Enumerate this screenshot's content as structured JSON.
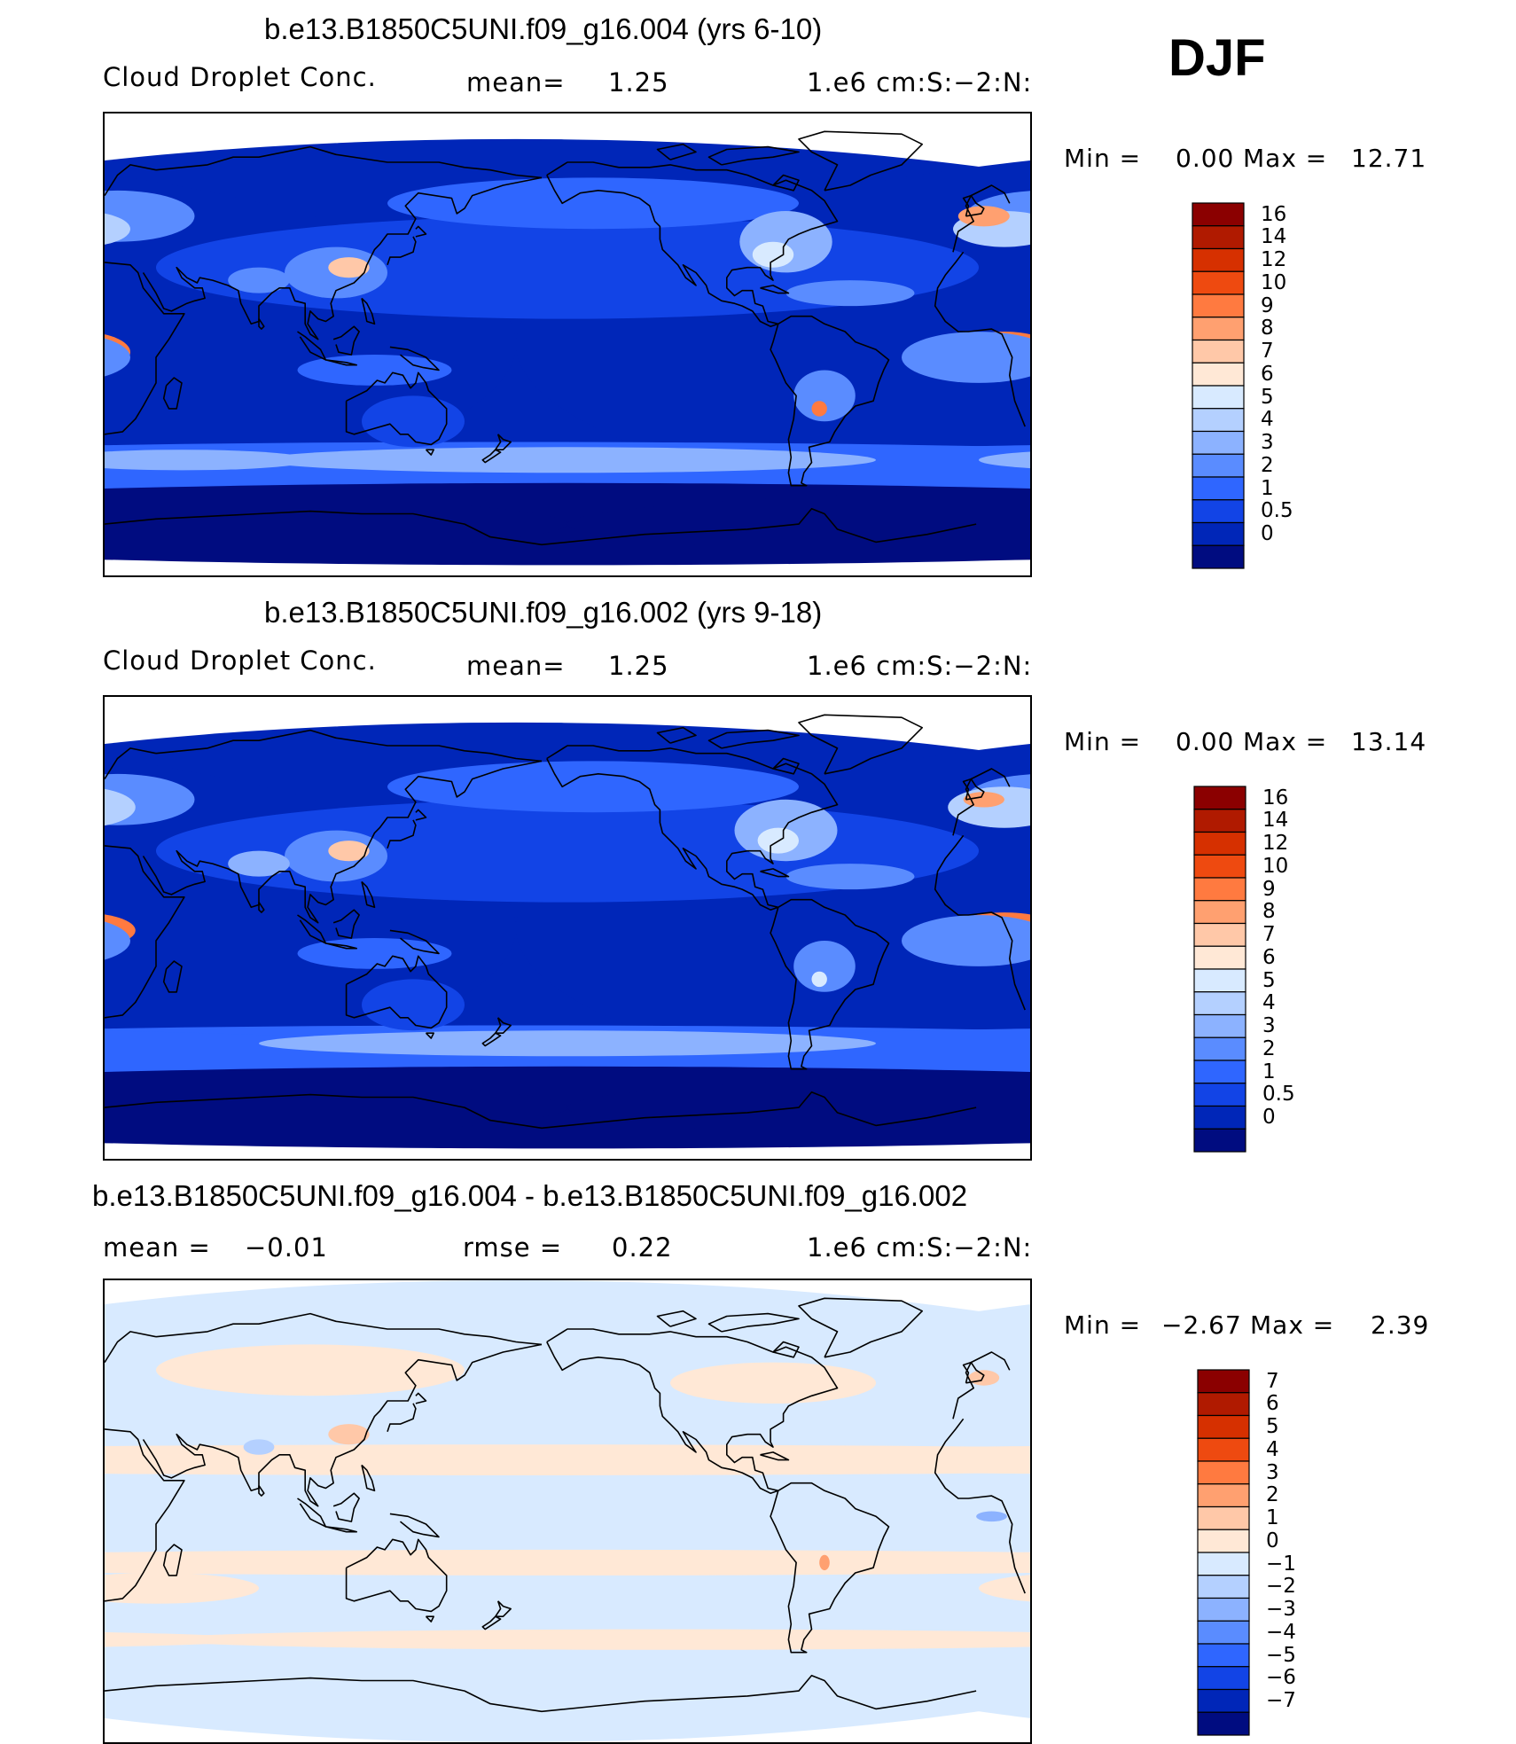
{
  "season": "DJF",
  "panels": [
    {
      "title": "b.e13.B1850C5UNI.f09_g16.004 (yrs 6-10)",
      "left_label": "Cloud Droplet Conc.",
      "mid_key": "mean=",
      "mid_value": "1.25",
      "right_key": "",
      "right_value": "",
      "units": "1.e6 cm:S:−2:N:",
      "min_label": "Min =",
      "min_value": "0.00",
      "max_label": "Max =",
      "max_value": "12.71",
      "style": "abs"
    },
    {
      "title": "b.e13.B1850C5UNI.f09_g16.002 (yrs 9-18)",
      "left_label": "Cloud Droplet Conc.",
      "mid_key": "mean=",
      "mid_value": "1.25",
      "right_key": "",
      "right_value": "",
      "units": "1.e6 cm:S:−2:N:",
      "min_label": "Min =",
      "min_value": "0.00",
      "max_label": "Max =",
      "max_value": "13.14",
      "style": "abs2"
    },
    {
      "title": "b.e13.B1850C5UNI.f09_g16.004 - b.e13.B1850C5UNI.f09_g16.002",
      "left_label": "mean =",
      "left_value": "−0.01",
      "mid_key": "rmse =",
      "mid_value": "0.22",
      "units": "1.e6 cm:S:−2:N:",
      "min_label": "Min =",
      "min_value": "−2.67",
      "max_label": "Max =",
      "max_value": "2.39",
      "style": "diff"
    }
  ],
  "colorbars": [
    {
      "labels": [
        "16",
        "14",
        "12",
        "10",
        "9",
        "8",
        "7",
        "6",
        "5",
        "4",
        "3",
        "2",
        "1",
        "0.5",
        "0"
      ],
      "colors": [
        "#8b0000",
        "#b01a00",
        "#d63000",
        "#ee4a10",
        "#ff7a40",
        "#ffa070",
        "#ffc8a8",
        "#ffe8d6",
        "#d8eaff",
        "#b4d0ff",
        "#8cb2ff",
        "#5a8cff",
        "#2f66ff",
        "#1244e6",
        "#0026b8",
        "#000c80"
      ]
    },
    {
      "labels": [
        "16",
        "14",
        "12",
        "10",
        "9",
        "8",
        "7",
        "6",
        "5",
        "4",
        "3",
        "2",
        "1",
        "0.5",
        "0"
      ],
      "colors": [
        "#8b0000",
        "#b01a00",
        "#d63000",
        "#ee4a10",
        "#ff7a40",
        "#ffa070",
        "#ffc8a8",
        "#ffe8d6",
        "#d8eaff",
        "#b4d0ff",
        "#8cb2ff",
        "#5a8cff",
        "#2f66ff",
        "#1244e6",
        "#0026b8",
        "#000c80"
      ]
    },
    {
      "labels": [
        "7",
        "6",
        "5",
        "4",
        "3",
        "2",
        "1",
        "0",
        "−1",
        "−2",
        "−3",
        "−4",
        "−5",
        "−6",
        "−7"
      ],
      "colors": [
        "#8b0000",
        "#b01a00",
        "#d63000",
        "#ee4a10",
        "#ff7a40",
        "#ffa070",
        "#ffc8a8",
        "#ffe8d6",
        "#d8eaff",
        "#b4d0ff",
        "#8cb2ff",
        "#5a8cff",
        "#2f66ff",
        "#1244e6",
        "#0026b8",
        "#000c80"
      ]
    }
  ]
}
